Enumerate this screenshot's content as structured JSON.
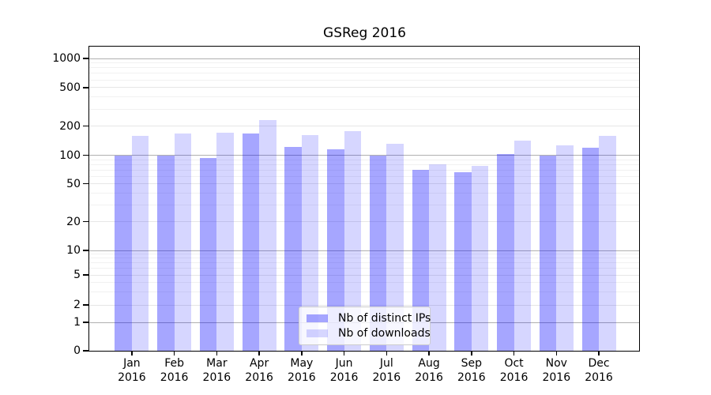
{
  "title": "GSReg 2016",
  "chart_data": {
    "type": "bar",
    "title": "GSReg 2016",
    "x_axis": {
      "months": [
        "Jan",
        "Feb",
        "Mar",
        "Apr",
        "May",
        "Jun",
        "Jul",
        "Aug",
        "Sep",
        "Oct",
        "Nov",
        "Dec"
      ],
      "year": "2016"
    },
    "y_axis": {
      "scale": "symlog",
      "ticks": [
        0,
        1,
        2,
        5,
        10,
        20,
        50,
        100,
        200,
        500,
        1000
      ],
      "major_gridline_values": [
        1,
        10,
        100,
        1000
      ],
      "minor_gridline_values": [
        3,
        4,
        6,
        7,
        8,
        9,
        30,
        40,
        60,
        70,
        80,
        90,
        300,
        400,
        600,
        700,
        800,
        900
      ],
      "range": [
        0,
        1325
      ]
    },
    "series": [
      {
        "name": "Nb of distinct IPs",
        "color": "rgba(0,0,255,0.35)",
        "values": [
          100,
          99,
          94,
          167,
          122,
          115,
          100,
          70,
          66,
          103,
          100,
          119
        ]
      },
      {
        "name": "Nb of downloads",
        "color": "rgba(0,0,255,0.16)",
        "values": [
          159,
          168,
          170,
          230,
          161,
          178,
          131,
          81,
          78,
          142,
          126,
          158
        ]
      }
    ],
    "legend": {
      "position": "lower center",
      "entries": [
        "Nb of distinct IPs",
        "Nb of downloads"
      ]
    },
    "grid": true
  },
  "colors": {
    "major_grid": "#b0b0b0",
    "labeled_grid": "#e6e6e6",
    "minor_grid": "#f1f1f1",
    "axis": "#000000",
    "text": "#000000",
    "legend_border": "#cccccc",
    "legend_bg": "rgba(255,255,255,0.8)",
    "bar_dark": "rgba(0,0,255,0.35)",
    "bar_light": "rgba(0,0,255,0.16)"
  }
}
